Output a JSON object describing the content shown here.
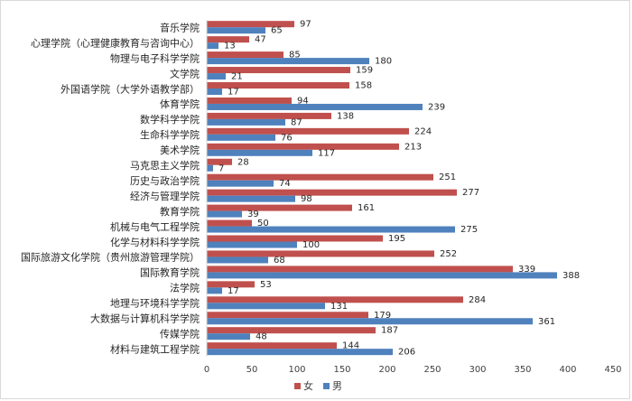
{
  "chart_data": {
    "type": "bar",
    "orientation": "horizontal",
    "categories": [
      "音乐学院",
      "心理学院（心理健康教育与咨询中心）",
      "物理与电子科学学院",
      "文学院",
      "外国语学院（大学外语教学部）",
      "体育学院",
      "数学科学学院",
      "生命科学学院",
      "美术学院",
      "马克思主义学院",
      "历史与政治学院",
      "经济与管理学院",
      "教育学院",
      "机械与电气工程学院",
      "化学与材料科学学院",
      "国际旅游文化学院（贵州旅游管理学院）",
      "国际教育学院",
      "法学院",
      "地理与环境科学学院",
      "大数据与计算机科学学院",
      "传媒学院",
      "材料与建筑工程学院"
    ],
    "series": [
      {
        "name": "女",
        "color": "#c0504d",
        "values": [
          97,
          47,
          85,
          159,
          158,
          94,
          138,
          224,
          213,
          28,
          251,
          277,
          161,
          50,
          195,
          252,
          339,
          53,
          284,
          179,
          187,
          144
        ]
      },
      {
        "name": "男",
        "color": "#4f81bd",
        "values": [
          65,
          13,
          180,
          21,
          17,
          239,
          87,
          76,
          117,
          7,
          74,
          98,
          39,
          275,
          100,
          68,
          388,
          17,
          131,
          361,
          48,
          206
        ]
      }
    ],
    "xlim": [
      0,
      450
    ],
    "xticks": [
      "0",
      "50",
      "100",
      "150",
      "200",
      "250",
      "300",
      "350",
      "400",
      "450"
    ],
    "legend": {
      "position": "bottom",
      "entries": [
        "女",
        "男"
      ]
    },
    "grid": false
  }
}
